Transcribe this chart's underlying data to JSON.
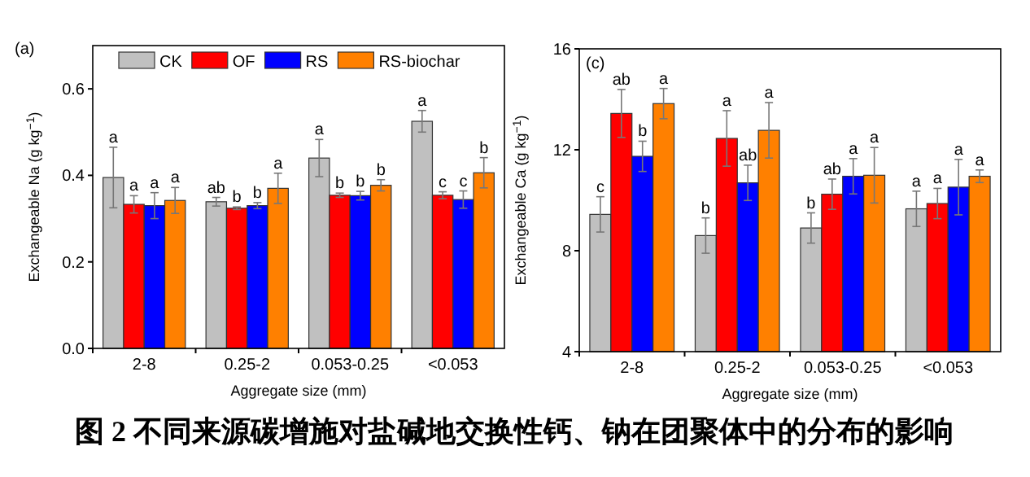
{
  "chart_data": [
    {
      "type": "bar",
      "title": "(a)",
      "xlabel": "Aggregate size (mm)",
      "ylabel": "Exchangeable Na (g kg$^{−1}$)",
      "categories": [
        "2-8",
        "0.25-2",
        "0.053-0.25",
        "<0.053"
      ],
      "ylim": [
        0,
        0.7
      ],
      "yticks": [
        {
          "value": 0,
          "label": "0.0"
        },
        0.2,
        0.4,
        0.6
      ],
      "legend": "top",
      "grid": false,
      "series": [
        {
          "name": "CK",
          "color": "#c0c0c0",
          "values": [
            0.395,
            0.339,
            0.44,
            0.525
          ],
          "errors": [
            0.07,
            0.01,
            0.043,
            0.025
          ],
          "value_labels": [
            "a",
            "ab",
            "a",
            "a"
          ]
        },
        {
          "name": "OF",
          "color": "#ff0000",
          "values": [
            0.333,
            0.324,
            0.354,
            0.354
          ],
          "errors": [
            0.02,
            0.003,
            0.005,
            0.008
          ],
          "value_labels": [
            "a",
            "b",
            "b",
            "c"
          ]
        },
        {
          "name": "RS",
          "color": "#0000ff",
          "values": [
            0.33,
            0.33,
            0.353,
            0.344
          ],
          "errors": [
            0.03,
            0.007,
            0.01,
            0.02
          ],
          "value_labels": [
            "a",
            "b",
            "b",
            "c"
          ]
        },
        {
          "name": "RS-biochar",
          "color": "#ff8000",
          "values": [
            0.342,
            0.37,
            0.377,
            0.406
          ],
          "errors": [
            0.03,
            0.035,
            0.013,
            0.035
          ],
          "value_labels": [
            "a",
            "a",
            "b",
            "b"
          ]
        }
      ]
    },
    {
      "type": "bar",
      "title": "(c)",
      "xlabel": "Aggregate size (mm)",
      "ylabel": "Exchangeable Ca (g kg$^{−1}$)",
      "categories": [
        "2-8",
        "0.25-2",
        "0.053-0.25",
        "<0.053"
      ],
      "ylim": [
        4,
        16
      ],
      "yticks": [
        4,
        8,
        12,
        16
      ],
      "grid": false,
      "annotations": [
        "图 2 不同来源碳增施对盐碱地交换性钙、钠在团聚体中的分布的影响"
      ],
      "series": [
        {
          "color": "#c0c0c0",
          "values": [
            9.44,
            8.6,
            8.9,
            9.66
          ],
          "errors": [
            0.7,
            0.7,
            0.6,
            0.7
          ],
          "value_labels": [
            "c",
            "b",
            "b",
            "a"
          ]
        },
        {
          "color": "#ff0000",
          "values": [
            13.44,
            12.45,
            10.24,
            9.87
          ],
          "errors": [
            0.95,
            1.1,
            0.6,
            0.6
          ],
          "value_labels": [
            "ab",
            "a",
            "ab",
            "a"
          ]
        },
        {
          "color": "#0000ff",
          "values": [
            11.74,
            10.69,
            10.95,
            10.52
          ],
          "errors": [
            0.6,
            0.7,
            0.7,
            1.1
          ],
          "value_labels": [
            "b",
            "ab",
            "a",
            "a"
          ]
        },
        {
          "color": "#ff8000",
          "values": [
            13.83,
            12.77,
            10.99,
            10.95
          ],
          "errors": [
            0.6,
            1.1,
            1.1,
            0.25
          ],
          "value_labels": [
            "a",
            "a",
            "a",
            "a"
          ]
        }
      ]
    }
  ]
}
